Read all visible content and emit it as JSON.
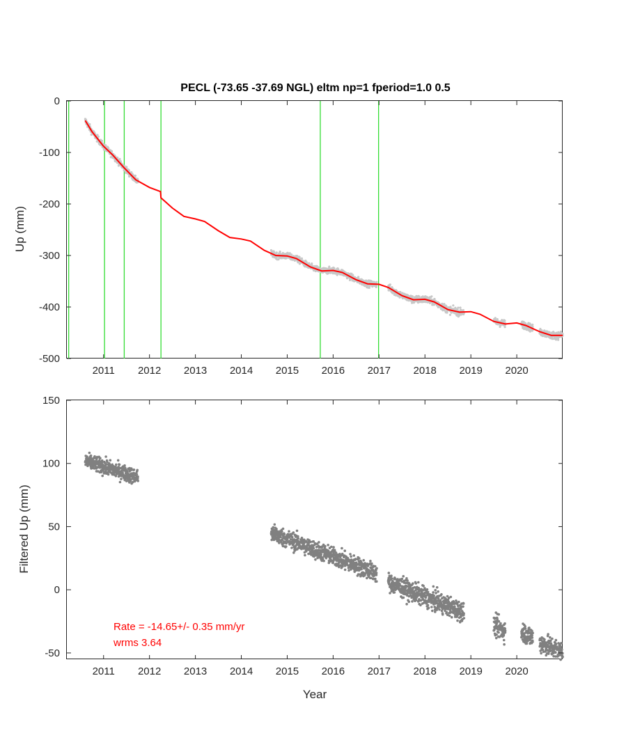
{
  "colors": {
    "axis": "#262626",
    "observed_points_top": "#c8c8c8",
    "model_line": "#ff0000",
    "event_lines": "#33dd33",
    "filtered_points": "#808080",
    "annotation": "#ff0000"
  },
  "chart_data": [
    {
      "type": "line",
      "title": "PECL (-73.65 -37.69 NGL) eltm np=1 fperiod=1.0 0.5",
      "xlabel": "",
      "ylabel": "Up (mm)",
      "xlim": [
        2010.2,
        2021.0
      ],
      "ylim": [
        -500,
        0
      ],
      "xticks": [
        2011,
        2012,
        2013,
        2014,
        2015,
        2016,
        2017,
        2018,
        2019,
        2020
      ],
      "xtick_labels": [
        "2011",
        "2012",
        "2013",
        "2014",
        "2015",
        "2016",
        "2017",
        "2018",
        "2019",
        "2020"
      ],
      "yticks": [
        0,
        -100,
        -200,
        -300,
        -400,
        -500
      ],
      "ytick_labels": [
        "0",
        "-100",
        "-200",
        "-300",
        "-400",
        "-500"
      ],
      "grid": false,
      "event_lines_x": [
        2010.24,
        2011.02,
        2011.45,
        2012.25,
        2015.72,
        2016.99
      ],
      "model_curve": {
        "x": [
          2010.6,
          2010.75,
          2011.0,
          2011.2,
          2011.45,
          2011.7,
          2012.0,
          2012.24,
          2012.25,
          2012.5,
          2012.75,
          2013.0,
          2013.2,
          2013.5,
          2013.75,
          2014.0,
          2014.2,
          2014.5,
          2014.75,
          2015.0,
          2015.2,
          2015.5,
          2015.75,
          2016.0,
          2016.2,
          2016.5,
          2016.75,
          2017.0,
          2017.2,
          2017.5,
          2017.75,
          2018.0,
          2018.2,
          2018.5,
          2018.75,
          2019.0,
          2019.2,
          2019.5,
          2019.75,
          2020.0,
          2020.2,
          2020.5,
          2020.75,
          2021.0
        ],
        "y": [
          -38,
          -60,
          -88,
          -105,
          -130,
          -153,
          -168,
          -176,
          -188,
          -208,
          -224,
          -229,
          -234,
          -252,
          -265,
          -268,
          -272,
          -290,
          -300,
          -301,
          -306,
          -322,
          -330,
          -329,
          -333,
          -347,
          -355,
          -356,
          -362,
          -378,
          -386,
          -385,
          -390,
          -405,
          -410,
          -409,
          -414,
          -428,
          -433,
          -431,
          -436,
          -448,
          -455,
          -455
        ]
      },
      "observed_segments": [
        {
          "x_start": 2010.6,
          "x_end": 2011.75,
          "noise_mm": 3
        },
        {
          "x_start": 2014.65,
          "x_end": 2016.95,
          "noise_mm": 3
        },
        {
          "x_start": 2017.2,
          "x_end": 2018.85,
          "noise_mm": 3.5
        },
        {
          "x_start": 2019.5,
          "x_end": 2019.75,
          "noise_mm": 3.5
        },
        {
          "x_start": 2020.1,
          "x_end": 2020.35,
          "noise_mm": 3.5
        },
        {
          "x_start": 2020.5,
          "x_end": 2021.0,
          "noise_mm": 3.5
        }
      ]
    },
    {
      "type": "scatter",
      "title": "",
      "xlabel": "Year",
      "ylabel": "Filtered Up (mm)",
      "xlim": [
        2010.2,
        2021.0
      ],
      "ylim": [
        -55,
        150
      ],
      "xticks": [
        2011,
        2012,
        2013,
        2014,
        2015,
        2016,
        2017,
        2018,
        2019,
        2020
      ],
      "xtick_labels": [
        "2011",
        "2012",
        "2013",
        "2014",
        "2015",
        "2016",
        "2017",
        "2018",
        "2019",
        "2020"
      ],
      "yticks": [
        150,
        100,
        50,
        0,
        -50
      ],
      "ytick_labels": [
        "150",
        "100",
        "50",
        "0",
        "-50"
      ],
      "grid": false,
      "segments": [
        {
          "x_start": 2010.6,
          "x_end": 2011.75,
          "y_start": 102,
          "y_end": 89,
          "noise": 3
        },
        {
          "x_start": 2014.65,
          "x_end": 2016.95,
          "y_start": 45,
          "y_end": 13,
          "noise": 3.5
        },
        {
          "x_start": 2017.2,
          "x_end": 2018.85,
          "y_start": 6,
          "y_end": -18,
          "noise": 3.8
        },
        {
          "x_start": 2019.5,
          "x_end": 2019.75,
          "y_start": -28,
          "y_end": -33,
          "noise": 4
        },
        {
          "x_start": 2020.1,
          "x_end": 2020.35,
          "y_start": -33,
          "y_end": -38,
          "noise": 4
        },
        {
          "x_start": 2020.5,
          "x_end": 2021.0,
          "y_start": -42,
          "y_end": -49,
          "noise": 4
        }
      ],
      "annotation": {
        "rate_text": "Rate = -14.65+/- 0.35 mm/yr",
        "wrms_text": "wrms 3.64"
      }
    }
  ]
}
